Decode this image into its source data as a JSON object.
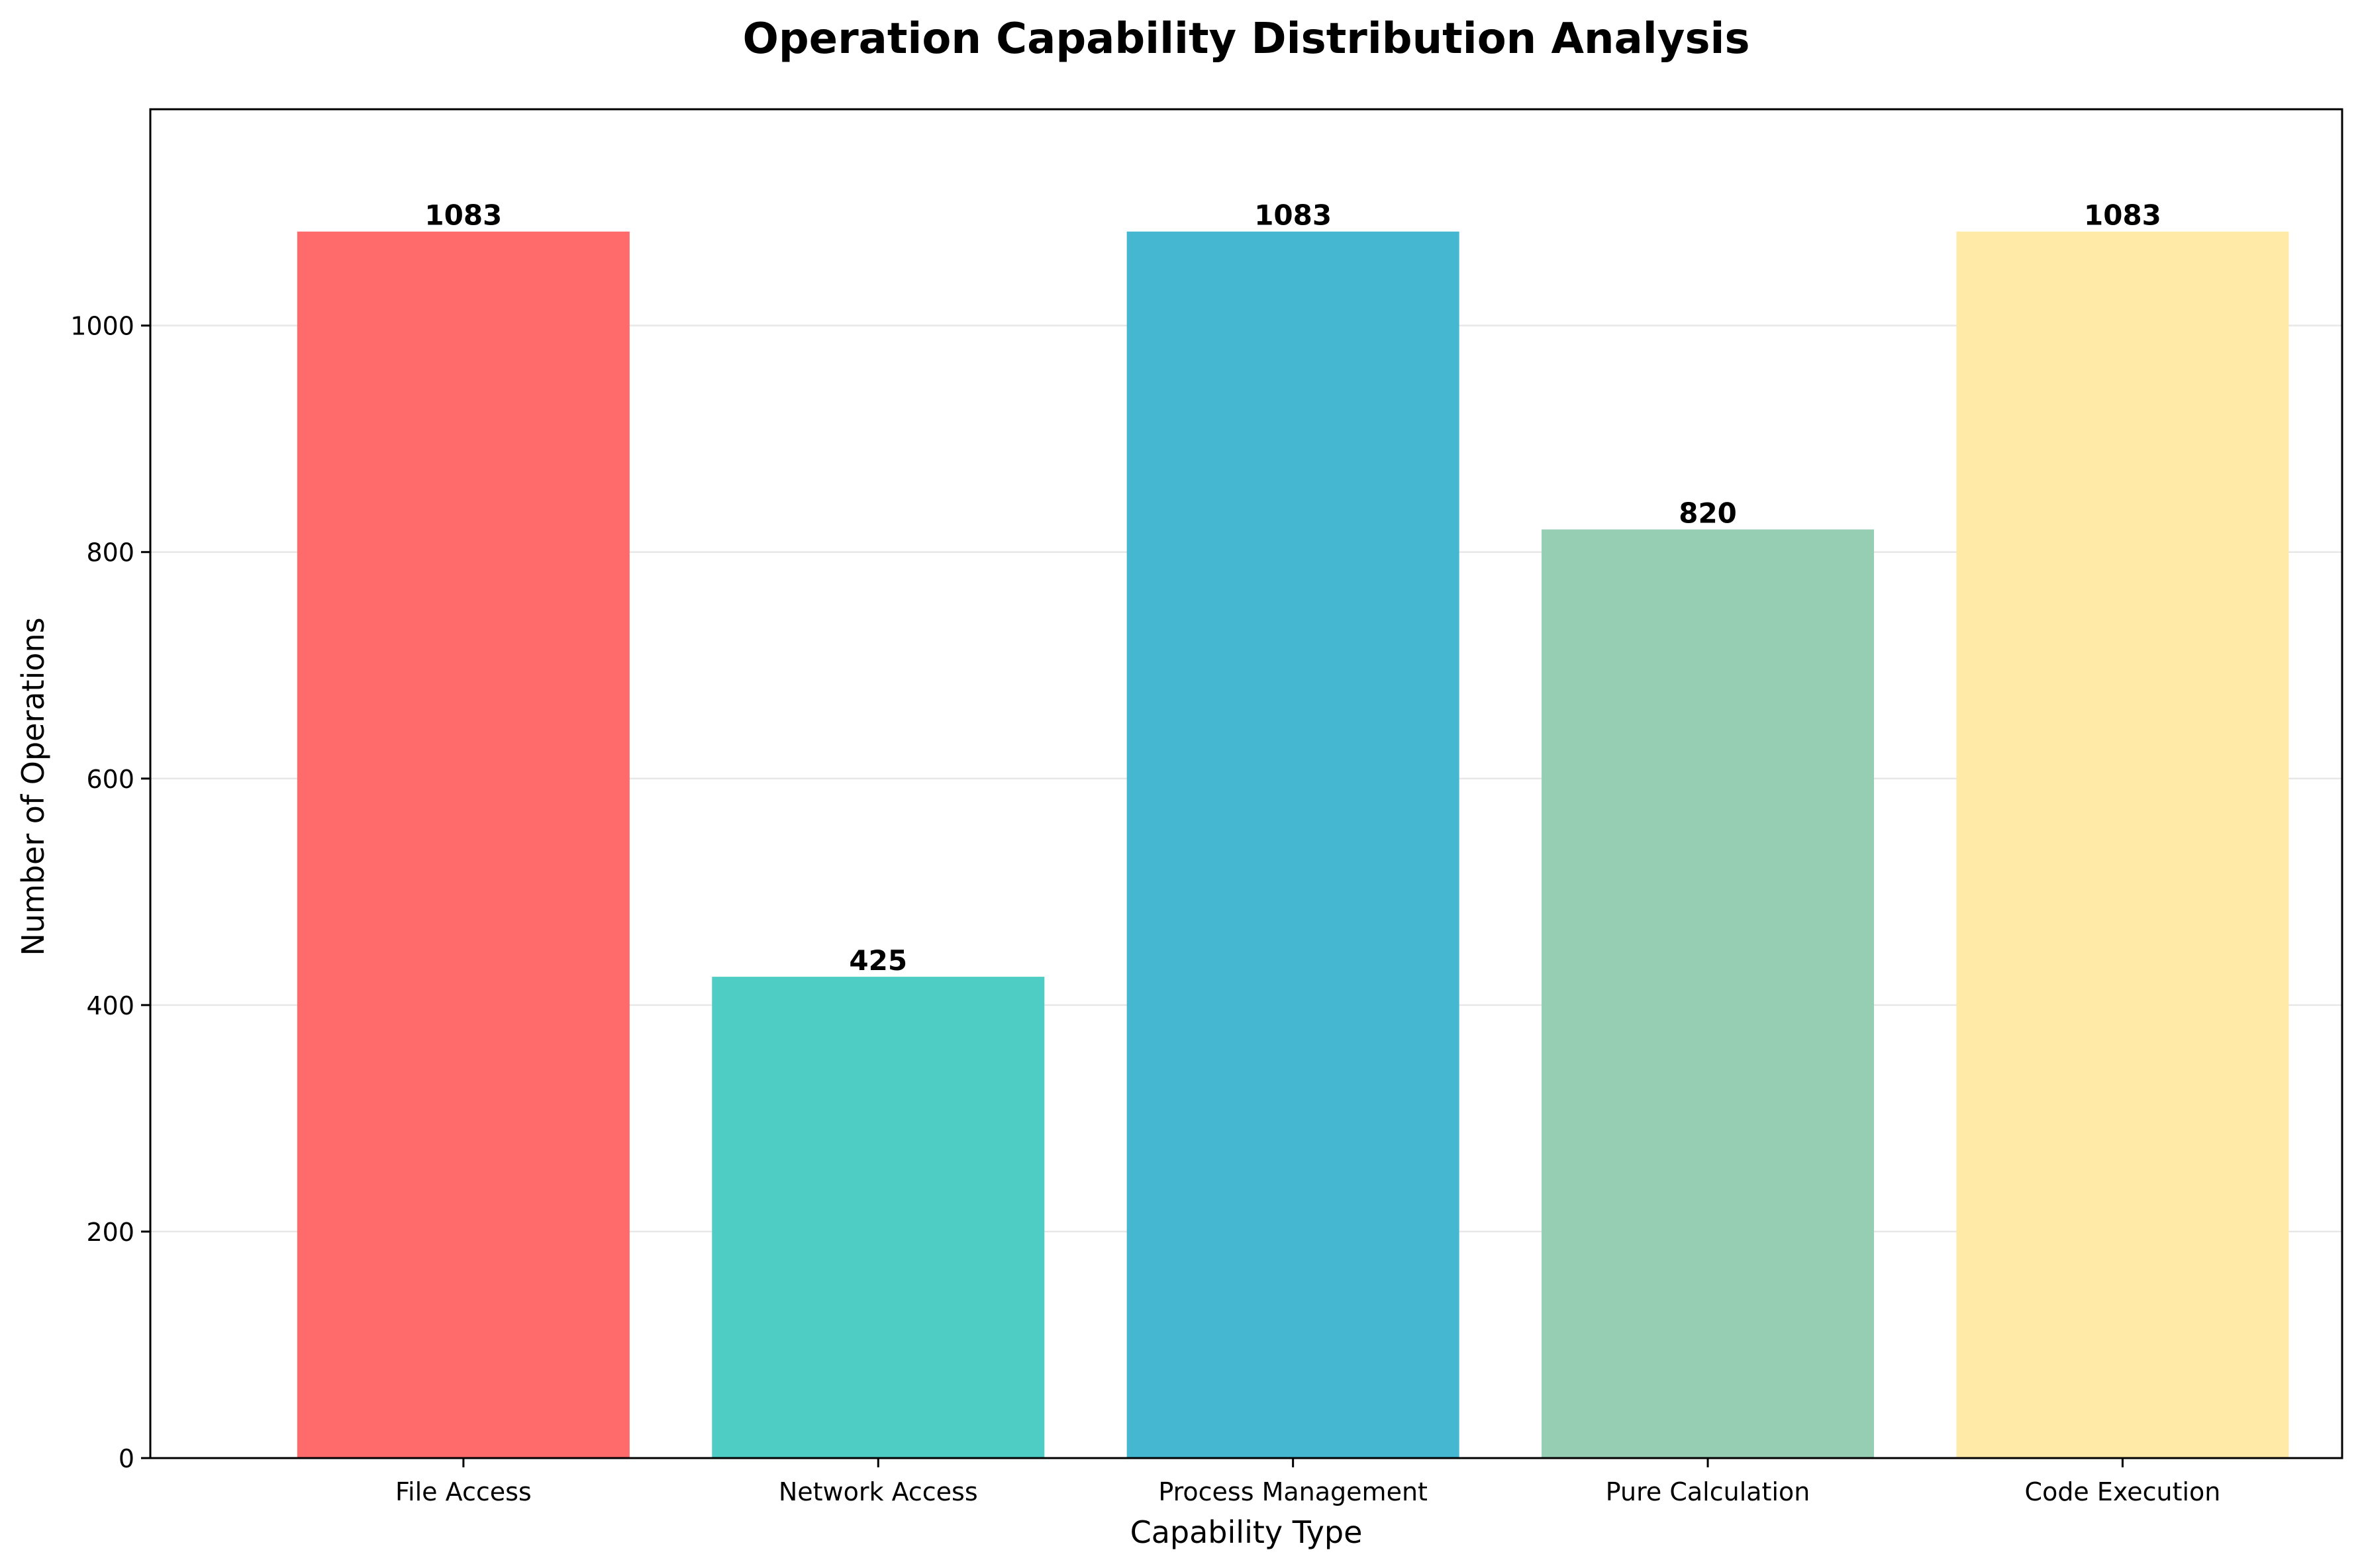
{
  "chart_data": {
    "type": "bar",
    "title": "Operation Capability Distribution Analysis",
    "xlabel": "Capability Type",
    "ylabel": "Number of Operations",
    "categories": [
      "File Access",
      "Network Access",
      "Process Management",
      "Pure Calculation",
      "Code Execution"
    ],
    "values": [
      1083,
      425,
      1083,
      820,
      1083
    ],
    "colors": [
      "#FF6B6B",
      "#4ECDC4",
      "#45B7D1",
      "#96CEB4",
      "#FFEAA7"
    ],
    "ylim": [
      0,
      1191
    ],
    "yticks": [
      0,
      200,
      400,
      600,
      800,
      1000
    ],
    "grid": "y",
    "legend": "none"
  }
}
